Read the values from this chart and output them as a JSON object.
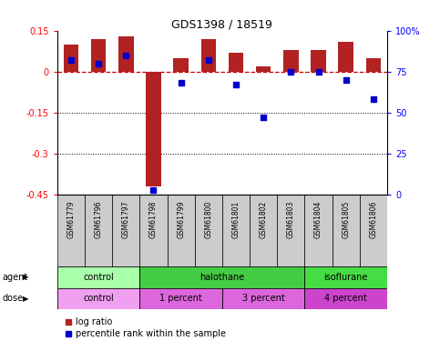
{
  "title": "GDS1398 / 18519",
  "samples": [
    "GSM61779",
    "GSM61796",
    "GSM61797",
    "GSM61798",
    "GSM61799",
    "GSM61800",
    "GSM61801",
    "GSM61802",
    "GSM61803",
    "GSM61804",
    "GSM61805",
    "GSM61806"
  ],
  "log_ratio": [
    0.1,
    0.12,
    0.13,
    -0.42,
    0.05,
    0.12,
    0.07,
    0.02,
    0.08,
    0.08,
    0.11,
    0.05
  ],
  "percentile": [
    82,
    80,
    85,
    3,
    68,
    82,
    67,
    47,
    75,
    75,
    70,
    58
  ],
  "bar_color": "#b22222",
  "dot_color": "#0000cd",
  "ref_line_color": "#cc0000",
  "ylim_left": [
    -0.45,
    0.15
  ],
  "ylim_right": [
    0,
    100
  ],
  "yticks_left": [
    0.15,
    0.0,
    -0.15,
    -0.3,
    -0.45
  ],
  "yticks_right": [
    100,
    75,
    50,
    25,
    0
  ],
  "agent_groups": [
    {
      "label": "control",
      "start": 0,
      "end": 3,
      "color": "#aaffaa"
    },
    {
      "label": "halothane",
      "start": 3,
      "end": 9,
      "color": "#44cc44"
    },
    {
      "label": "isoflurane",
      "start": 9,
      "end": 12,
      "color": "#44dd44"
    }
  ],
  "dose_groups": [
    {
      "label": "control",
      "start": 0,
      "end": 3,
      "color": "#f0a0f0"
    },
    {
      "label": "1 percent",
      "start": 3,
      "end": 6,
      "color": "#dd66dd"
    },
    {
      "label": "3 percent",
      "start": 6,
      "end": 9,
      "color": "#dd66dd"
    },
    {
      "label": "4 percent",
      "start": 9,
      "end": 12,
      "color": "#cc44cc"
    }
  ],
  "legend_red_label": "log ratio",
  "legend_blue_label": "percentile rank within the sample",
  "bar_width": 0.55,
  "bg_color": "#ffffff",
  "sample_bg_color": "#cccccc"
}
